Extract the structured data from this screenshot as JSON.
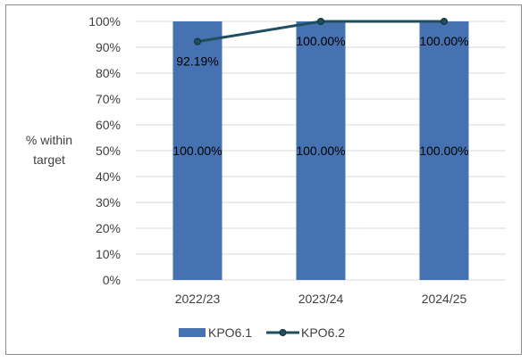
{
  "chart_data": {
    "type": "bar",
    "categories": [
      "2022/23",
      "2023/24",
      "2024/25"
    ],
    "series": [
      {
        "name": "KPO6.1",
        "kind": "bar",
        "values": [
          100.0,
          100.0,
          100.0
        ],
        "labels": [
          "100.00%",
          "100.00%",
          "100.00%"
        ],
        "color": "#4672b1"
      },
      {
        "name": "KPO6.2",
        "kind": "line",
        "values": [
          92.19,
          100.0,
          100.0
        ],
        "labels": [
          "92.19%",
          "100.00%",
          "100.00%"
        ],
        "color": "#1f4e5f"
      }
    ],
    "ylabel": [
      "% within",
      "target"
    ],
    "ylim": [
      0,
      100
    ],
    "yticks": [
      "0%",
      "10%",
      "20%",
      "30%",
      "40%",
      "50%",
      "60%",
      "70%",
      "80%",
      "90%",
      "100%"
    ],
    "grid": true,
    "legend": "bottom"
  }
}
